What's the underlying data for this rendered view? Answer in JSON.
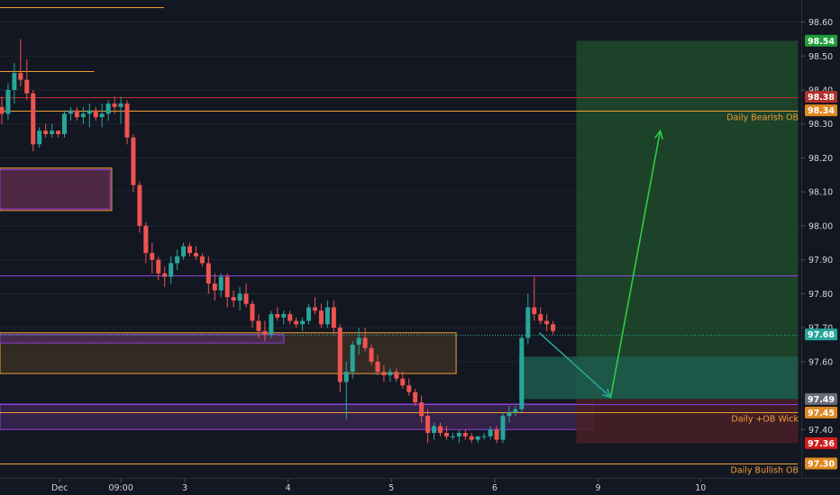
{
  "chart_data": {
    "type": "candlestick",
    "title": "",
    "ylim": [
      97.255,
      98.665
    ],
    "x_ticks": [
      "Dec",
      "09:00",
      "3",
      "4",
      "5",
      "6",
      "9",
      "10"
    ],
    "y_ticks": [
      "98.60",
      "98.50",
      "98.40",
      "98.30",
      "98.20",
      "98.10",
      "98.00",
      "97.90",
      "97.80",
      "97.70",
      "97.60",
      "97.40"
    ],
    "candles": [
      [
        98.35,
        98.38,
        98.3,
        98.33
      ],
      [
        98.33,
        98.42,
        98.31,
        98.4
      ],
      [
        98.4,
        98.48,
        98.36,
        98.45
      ],
      [
        98.45,
        98.55,
        98.41,
        98.43
      ],
      [
        98.43,
        98.49,
        98.37,
        98.39
      ],
      [
        98.39,
        98.4,
        98.22,
        98.24
      ],
      [
        98.24,
        98.29,
        98.23,
        98.28
      ],
      [
        98.28,
        98.3,
        98.26,
        98.27
      ],
      [
        98.27,
        98.3,
        98.26,
        98.28
      ],
      [
        98.28,
        98.28,
        98.26,
        98.27
      ],
      [
        98.27,
        98.34,
        98.26,
        98.33
      ],
      [
        98.33,
        98.35,
        98.31,
        98.34
      ],
      [
        98.34,
        98.35,
        98.31,
        98.32
      ],
      [
        98.32,
        98.35,
        98.3,
        98.33
      ],
      [
        98.33,
        98.36,
        98.29,
        98.34
      ],
      [
        98.34,
        98.35,
        98.31,
        98.32
      ],
      [
        98.32,
        98.36,
        98.29,
        98.33
      ],
      [
        98.33,
        98.37,
        98.31,
        98.36
      ],
      [
        98.36,
        98.38,
        98.33,
        98.35
      ],
      [
        98.35,
        98.38,
        98.3,
        98.36
      ],
      [
        98.36,
        98.37,
        98.24,
        98.26
      ],
      [
        98.26,
        98.27,
        98.1,
        98.12
      ],
      [
        98.12,
        98.13,
        97.98,
        98.0
      ],
      [
        98.0,
        98.01,
        97.89,
        97.92
      ],
      [
        97.92,
        97.95,
        97.86,
        97.9
      ],
      [
        97.9,
        97.91,
        97.84,
        97.86
      ],
      [
        97.86,
        97.88,
        97.82,
        97.85
      ],
      [
        97.85,
        97.91,
        97.83,
        97.89
      ],
      [
        97.89,
        97.93,
        97.87,
        97.91
      ],
      [
        97.91,
        97.95,
        97.9,
        97.94
      ],
      [
        97.94,
        97.95,
        97.91,
        97.92
      ],
      [
        97.92,
        97.94,
        97.9,
        97.91
      ],
      [
        97.91,
        97.92,
        97.88,
        97.89
      ],
      [
        97.89,
        97.91,
        97.8,
        97.83
      ],
      [
        97.83,
        97.86,
        97.78,
        97.81
      ],
      [
        97.81,
        97.86,
        97.79,
        97.85
      ],
      [
        97.85,
        97.86,
        97.76,
        97.79
      ],
      [
        97.79,
        97.81,
        97.76,
        97.78
      ],
      [
        97.78,
        97.82,
        97.75,
        97.8
      ],
      [
        97.8,
        97.83,
        97.76,
        97.77
      ],
      [
        97.77,
        97.78,
        97.7,
        97.72
      ],
      [
        97.72,
        97.74,
        97.67,
        97.69
      ],
      [
        97.69,
        97.72,
        97.66,
        97.68
      ],
      [
        97.68,
        97.75,
        97.67,
        97.74
      ],
      [
        97.74,
        97.76,
        97.72,
        97.73
      ],
      [
        97.73,
        97.75,
        97.71,
        97.74
      ],
      [
        97.74,
        97.75,
        97.71,
        97.72
      ],
      [
        97.72,
        97.73,
        97.7,
        97.71
      ],
      [
        97.71,
        97.73,
        97.69,
        97.72
      ],
      [
        97.72,
        97.77,
        97.71,
        97.76
      ],
      [
        97.76,
        97.79,
        97.74,
        97.75
      ],
      [
        97.75,
        97.77,
        97.7,
        97.71
      ],
      [
        97.71,
        97.78,
        97.7,
        97.76
      ],
      [
        97.76,
        97.78,
        97.68,
        97.7
      ],
      [
        97.7,
        97.71,
        97.51,
        97.54
      ],
      [
        97.54,
        97.6,
        97.43,
        97.57
      ],
      [
        97.57,
        97.66,
        97.55,
        97.65
      ],
      [
        97.65,
        97.7,
        97.62,
        97.67
      ],
      [
        97.67,
        97.7,
        97.63,
        97.64
      ],
      [
        97.64,
        97.65,
        97.59,
        97.6
      ],
      [
        97.6,
        97.62,
        97.56,
        97.57
      ],
      [
        97.57,
        97.59,
        97.54,
        97.56
      ],
      [
        97.56,
        97.58,
        97.54,
        97.57
      ],
      [
        97.57,
        97.58,
        97.54,
        97.55
      ],
      [
        97.55,
        97.57,
        97.52,
        97.53
      ],
      [
        97.53,
        97.55,
        97.5,
        97.51
      ],
      [
        97.51,
        97.52,
        97.47,
        97.48
      ],
      [
        97.48,
        97.5,
        97.42,
        97.44
      ],
      [
        97.44,
        97.46,
        97.36,
        97.39
      ],
      [
        97.39,
        97.42,
        97.37,
        97.41
      ],
      [
        97.41,
        97.42,
        97.38,
        97.39
      ],
      [
        97.39,
        97.41,
        97.37,
        97.38
      ],
      [
        97.38,
        97.39,
        97.37,
        97.38
      ],
      [
        97.38,
        97.4,
        97.36,
        97.39
      ],
      [
        97.39,
        97.4,
        97.37,
        97.38
      ],
      [
        97.38,
        97.39,
        97.36,
        97.37
      ],
      [
        97.37,
        97.38,
        97.36,
        97.38
      ],
      [
        97.38,
        97.39,
        97.37,
        97.38
      ],
      [
        97.38,
        97.41,
        97.37,
        97.4
      ],
      [
        97.4,
        97.41,
        97.36,
        97.37
      ],
      [
        97.37,
        97.45,
        97.36,
        97.44
      ],
      [
        97.44,
        97.47,
        97.42,
        97.45
      ],
      [
        97.45,
        97.47,
        97.44,
        97.46
      ],
      [
        97.46,
        97.68,
        97.45,
        97.67
      ],
      [
        97.67,
        97.8,
        97.65,
        97.76
      ],
      [
        97.76,
        97.85,
        97.72,
        97.74
      ],
      [
        97.74,
        97.76,
        97.71,
        97.72
      ],
      [
        97.72,
        97.74,
        97.69,
        97.71
      ],
      [
        97.71,
        97.72,
        97.68,
        97.69
      ]
    ],
    "levels": [
      {
        "label": "",
        "price": 98.645,
        "color": "#f0a032",
        "from": 0,
        "to": 0.195
      },
      {
        "label": "",
        "price": 98.455,
        "color": "#f0a032",
        "from": 0,
        "to": 0.112
      },
      {
        "label": "",
        "price": 98.38,
        "color": "#b2302e",
        "from": 0,
        "to": 0.95
      },
      {
        "label": "Daily Bearish OB",
        "price": 98.34,
        "color": "#f0a032",
        "from": 0,
        "to": 0.95
      },
      {
        "label": "",
        "price": 97.855,
        "color": "#8e40d6",
        "from": 0,
        "to": 0.95
      },
      {
        "label": "",
        "price": 97.68,
        "color": "#26a69a",
        "from": 0,
        "to": 0.95,
        "dotted": true
      },
      {
        "label": "",
        "price": 97.475,
        "color": "#8e40d6",
        "from": 0,
        "to": 0.95
      },
      {
        "label": "Daily +OB Wick",
        "price": 97.45,
        "color": "#f0a032",
        "from": 0,
        "to": 0.95
      },
      {
        "label": "Daily Bullish OB",
        "price": 97.3,
        "color": "#f0a032",
        "from": 0,
        "to": 0.95
      }
    ],
    "zones": [
      {
        "y": [
          98.045,
          98.17
        ],
        "x": [
          0,
          0.133
        ],
        "fill": "#5a2c4a",
        "stroke": "#f0a032"
      },
      {
        "y": [
          98.05,
          98.165
        ],
        "x": [
          0,
          0.131
        ],
        "fill": "none",
        "stroke": "#8e40d6"
      },
      {
        "y": [
          97.565,
          97.685
        ],
        "x": [
          0,
          0.543
        ],
        "fill": "#3a2e24",
        "stroke": "#f0a032"
      },
      {
        "y": [
          97.655,
          97.68
        ],
        "x": [
          0,
          0.338
        ],
        "fill": "#4a2d54",
        "stroke": "#8e40d6"
      },
      {
        "y": [
          97.4,
          97.475
        ],
        "x": [
          0,
          0.706
        ],
        "fill": "#3a2550",
        "stroke": "#8e40d6"
      },
      {
        "y": [
          97.49,
          98.545
        ],
        "x": [
          0.686,
          0.95
        ],
        "fill": "#1f4a2b",
        "stroke": "none"
      },
      {
        "y": [
          97.36,
          97.49
        ],
        "x": [
          0.686,
          0.95
        ],
        "fill": "#4a1f26",
        "stroke": "none"
      },
      {
        "y": [
          97.49,
          97.615
        ],
        "x": [
          0.618,
          0.95
        ],
        "fill": "#1d5a4e",
        "stroke": "none"
      }
    ],
    "projection": [
      [
        97.685,
        0.642
      ],
      [
        97.495,
        0.727
      ],
      [
        98.28,
        0.786
      ]
    ],
    "price_tags": [
      {
        "label": "98.54",
        "price": 98.545,
        "bg": "#1e9e3a"
      },
      {
        "label": "98.38",
        "price": 98.38,
        "bg": "#b2302e"
      },
      {
        "label": "98.34",
        "price": 98.34,
        "bg": "#e08a22"
      },
      {
        "label": "97.68",
        "price": 97.68,
        "bg": "#26a69a"
      },
      {
        "label": "97.49",
        "price": 97.49,
        "bg": "#6a6d78"
      },
      {
        "label": "97.45",
        "price": 97.45,
        "bg": "#e08a22"
      },
      {
        "label": "97.36",
        "price": 97.36,
        "bg": "#d01e1e"
      },
      {
        "label": "97.30",
        "price": 97.3,
        "bg": "#e08a22"
      }
    ],
    "colors": {
      "bg": "#131722",
      "up": "#26a69a",
      "down": "#ef5350",
      "axis_text": "#d1d4dc",
      "grid": "#1f2430"
    }
  }
}
